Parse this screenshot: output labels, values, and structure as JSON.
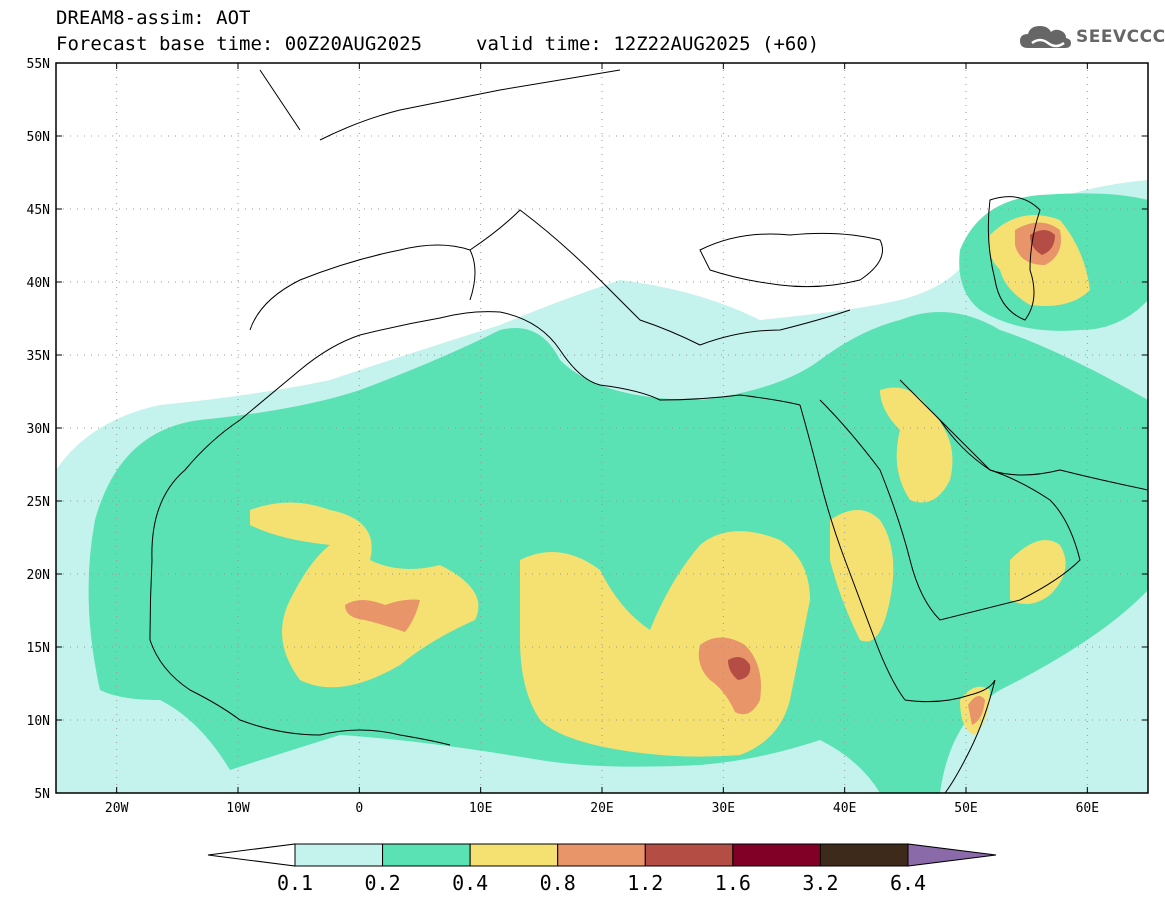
{
  "header": {
    "title": "DREAM8-assim: AOT",
    "base_time": "Forecast base time: 00Z20AUG2025",
    "valid_time": "valid time: 12Z22AUG2025 (+60)"
  },
  "logo": {
    "text": "SEEVCCC",
    "icon": "cloud-icon"
  },
  "map": {
    "lat_labels": [
      "55N",
      "50N",
      "45N",
      "40N",
      "35N",
      "30N",
      "25N",
      "20N",
      "15N",
      "10N",
      "5N"
    ],
    "lon_labels": [
      "20W",
      "10W",
      "0",
      "10E",
      "20E",
      "30E",
      "40E",
      "50E",
      "60E"
    ],
    "lat_range": [
      5,
      55
    ],
    "lon_range": [
      -25,
      65
    ],
    "grid": "dotted"
  },
  "colorbar": {
    "labels": [
      "0.1",
      "0.2",
      "0.4",
      "0.8",
      "1.2",
      "1.6",
      "3.2",
      "6.4"
    ],
    "colors": [
      "#ffffff",
      "#c4f2ec",
      "#5ae1b4",
      "#f4e172",
      "#e8956a",
      "#b44d44",
      "#800026",
      "#3d2a1a",
      "#8a6aa8"
    ]
  }
}
